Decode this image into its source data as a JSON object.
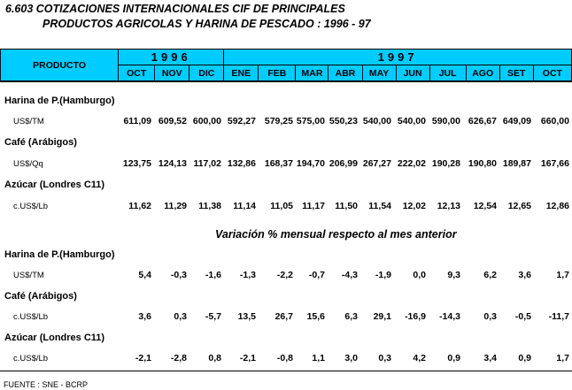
{
  "title_line1": "6.603  COTIZACIONES INTERNACIONALES CIF DE PRINCIPALES",
  "title_line2": "PRODUCTOS AGRICOLAS Y HARINA DE PESCADO : 1996 - 97",
  "header": {
    "producto": "PRODUCTO",
    "year1": "1996",
    "year2": "1997",
    "months_1996": [
      "OCT",
      "NOV",
      "DIC"
    ],
    "months_1997": [
      "ENE",
      "FEB",
      "MAR",
      "ABR",
      "MAY",
      "JUN",
      "JUL",
      "AGO",
      "SET",
      "OCT"
    ]
  },
  "prices": [
    {
      "name": "Harina de P.(Hamburgo)",
      "unit": "US$/TM",
      "values": [
        "611,09",
        "609,52",
        "600,00",
        "592,27",
        "579,25",
        "575,00",
        "550,23",
        "540,00",
        "540,00",
        "590,00",
        "626,67",
        "649,09",
        "660,00"
      ]
    },
    {
      "name": "Café    (Arábigos)",
      "unit": "US$/Qq",
      "values": [
        "123,75",
        "124,13",
        "117,02",
        "132,86",
        "168,37",
        "194,70",
        "206,99",
        "267,27",
        "222,02",
        "190,28",
        "190,80",
        "189,87",
        "167,66"
      ]
    },
    {
      "name": "Azúcar  (Londres C11)",
      "unit": "c.US$/Lb",
      "values": [
        "11,62",
        "11,29",
        "11,38",
        "11,14",
        "11,05",
        "11,17",
        "11,50",
        "11,54",
        "12,02",
        "12,13",
        "12,54",
        "12,65",
        "12,86"
      ]
    }
  ],
  "variation_title": "Variación % mensual respecto al mes anterior",
  "variations": [
    {
      "name": "Harina de P.(Hamburgo)",
      "unit": "US$/TM",
      "values": [
        "5,4",
        "-0,3",
        "-1,6",
        "-1,3",
        "-2,2",
        "-0,7",
        "-4,3",
        "-1,9",
        "0,0",
        "9,3",
        "6,2",
        "3,6",
        "1,7"
      ]
    },
    {
      "name": "Café    (Arábigos)",
      "unit": "c.US$/Lb",
      "values": [
        "3,6",
        "0,3",
        "-5,7",
        "13,5",
        "26,7",
        "15,6",
        "6,3",
        "29,1",
        "-16,9",
        "-14,3",
        "0,3",
        "-0,5",
        "-11,7"
      ]
    },
    {
      "name": "Azúcar  (Londres C11)",
      "unit": "c.US$/Lb",
      "values": [
        "-2,1",
        "-2,8",
        "0,8",
        "-2,1",
        "-0,8",
        "1,1",
        "3,0",
        "0,3",
        "4,2",
        "0,9",
        "3,4",
        "0,9",
        "1,7"
      ]
    }
  ],
  "source": "FUENTE : SNE - BCRP"
}
